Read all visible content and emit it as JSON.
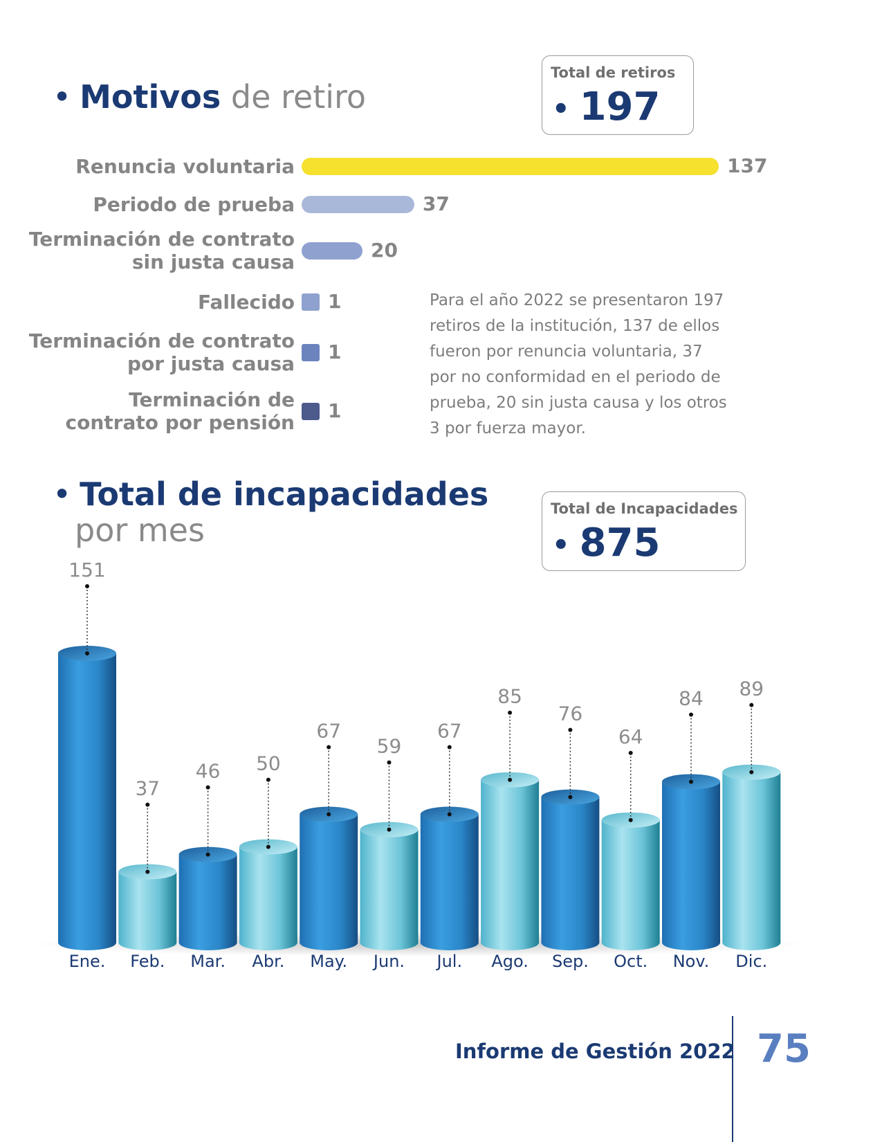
{
  "section1": {
    "title_strong": "Motivos",
    "title_light": "de retiro",
    "total_label": "Total de retiros",
    "total_value": "197"
  },
  "section2": {
    "title_strong": "Total de incapacidades",
    "title_light": "por mes",
    "total_label": "Total de Incapacidades",
    "total_value": "875"
  },
  "paragraph": "Para el año 2022 se presentaron 197 retiros de la institución, 137 de ellos fueron por renuncia voluntaria, 37 por no conformidad en el periodo de prueba, 20 sin justa causa y los otros 3 por fuerza mayor.",
  "chart_data": [
    {
      "type": "bar",
      "orientation": "horizontal",
      "title": "Motivos de retiro",
      "categories": [
        [
          "Renuncia voluntaria"
        ],
        [
          "Periodo de prueba"
        ],
        [
          "Terminación de contrato",
          "sin justa causa"
        ],
        [
          "Fallecido"
        ],
        [
          "Terminación de contrato",
          "por justa causa"
        ],
        [
          "Terminación de",
          "contrato por pensión"
        ]
      ],
      "values": [
        137,
        37,
        20,
        1,
        1,
        1
      ],
      "colors": [
        "#f5e12e",
        "#a9b8d9",
        "#8ea1cf",
        "#8ea1cf",
        "#6b84be",
        "#4c5a8c"
      ]
    },
    {
      "type": "bar",
      "title": "Total de incapacidades por mes",
      "categories": [
        "Ene.",
        "Feb.",
        "Mar.",
        "Abr.",
        "May.",
        "Jun.",
        "Jul.",
        "Ago.",
        "Sep.",
        "Oct.",
        "Nov.",
        "Dic."
      ],
      "values": [
        151,
        37,
        46,
        50,
        67,
        59,
        67,
        85,
        76,
        64,
        84,
        89
      ],
      "color_styles": [
        "dark",
        "light",
        "dark",
        "light",
        "dark",
        "light",
        "dark",
        "light",
        "dark",
        "light",
        "dark",
        "light"
      ],
      "colors": {
        "dark": "#2d8fd0",
        "light": "#7ccfe0"
      }
    }
  ],
  "footer": {
    "report": "Informe de Gestión 2022",
    "page": "75"
  }
}
